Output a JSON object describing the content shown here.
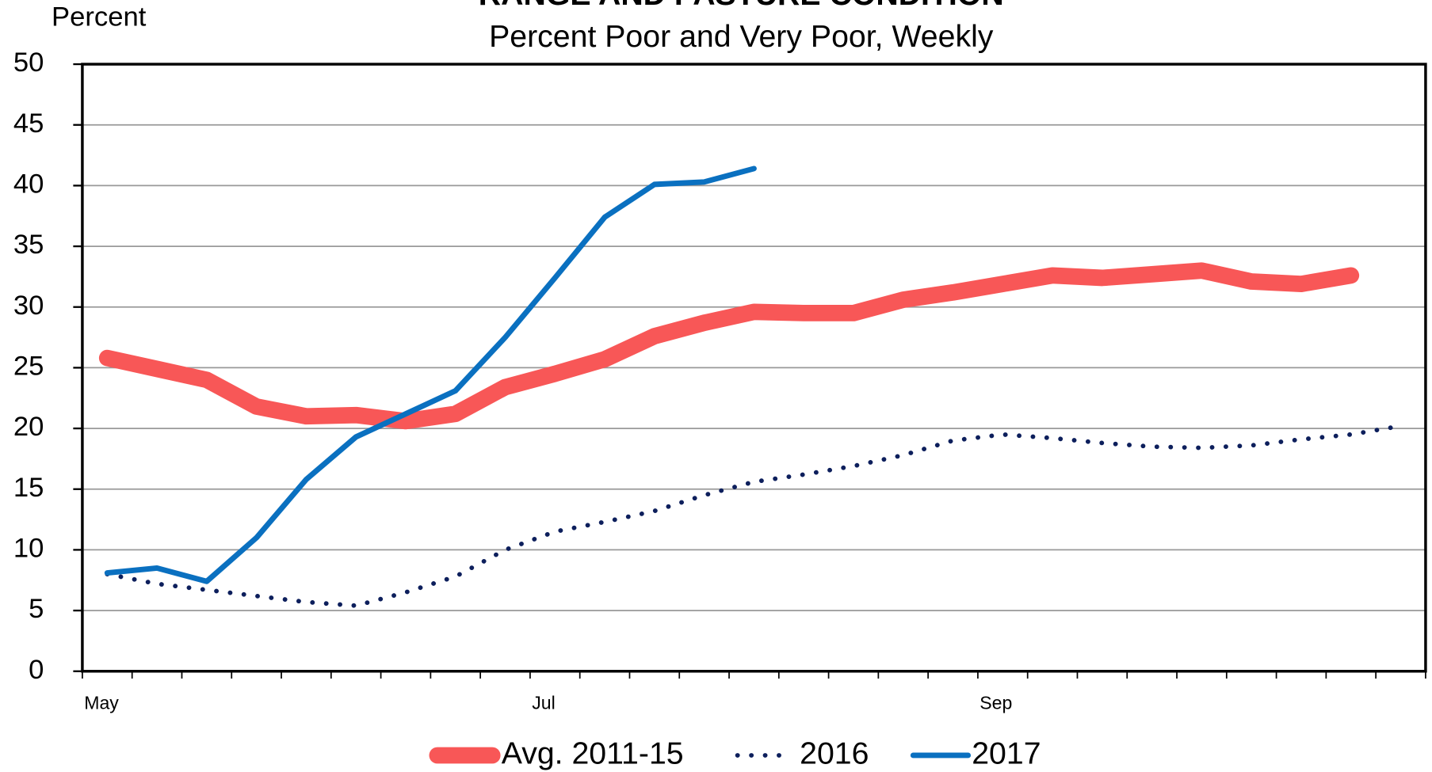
{
  "chart_data": {
    "type": "line",
    "title": "RANGE AND PASTURE CONDITION",
    "subtitle": "Percent Poor and Very Poor, Weekly",
    "y_label": "Percent",
    "categories": [
      "May",
      null,
      null,
      null,
      null,
      null,
      null,
      null,
      null,
      "Jul",
      null,
      null,
      null,
      null,
      null,
      null,
      null,
      null,
      "Sep",
      null,
      null,
      null,
      null,
      null,
      null,
      null,
      null
    ],
    "series": [
      {
        "name": "Avg. 2011-15",
        "color": "#f85757",
        "style": "solid",
        "width": 18,
        "values": [
          25.8,
          24.9,
          24,
          21.8,
          21,
          21.1,
          20.6,
          21.2,
          23.4,
          24.5,
          25.7,
          27.6,
          28.7,
          29.6,
          29.5,
          29.5,
          30.6,
          31.2,
          31.9,
          32.6,
          32.4,
          32.7,
          33,
          32.1,
          31.9,
          32.6,
          null
        ]
      },
      {
        "name": "2016",
        "color": "#0d1f5c",
        "style": "dotted",
        "width": 5,
        "values": [
          8,
          7.2,
          6.7,
          6.2,
          5.7,
          5.4,
          6.5,
          7.8,
          10,
          11.5,
          12.3,
          13.2,
          14.5,
          15.6,
          16.2,
          16.9,
          17.8,
          19,
          19.5,
          19.2,
          18.8,
          18.5,
          18.4,
          18.6,
          19.1,
          19.5,
          20.2
        ]
      },
      {
        "name": "2017",
        "color": "#0a70c0",
        "style": "solid",
        "width": 6,
        "values": [
          8.1,
          8.5,
          7.4,
          11,
          15.8,
          19.3,
          21.2,
          23.1,
          27.5,
          32.4,
          37.4,
          40.1,
          40.3,
          41.4,
          null,
          null,
          null,
          null,
          null,
          null,
          null,
          null,
          null,
          null,
          null,
          null,
          null
        ]
      }
    ],
    "ylim": [
      0,
      50
    ],
    "yticks": [
      0,
      5,
      10,
      15,
      20,
      25,
      30,
      35,
      40,
      45,
      50
    ],
    "grid": true,
    "legend": "bottom"
  }
}
